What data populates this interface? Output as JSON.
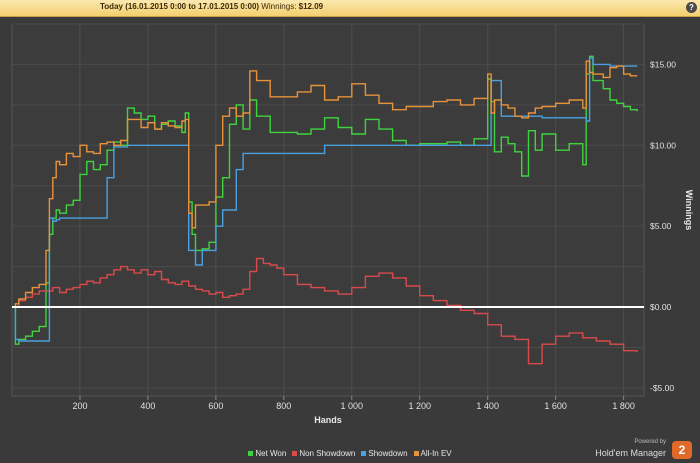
{
  "header": {
    "range_label": "Today (16.01.2015 0:00 to 17.01.2015 0:00)",
    "winnings_label": "Winnings:",
    "winnings_value": "$12.09",
    "help_label": "?"
  },
  "brand": {
    "powered_by": "Powered by",
    "name": "Hold'em Manager",
    "badge": "2"
  },
  "chart_data": {
    "type": "line",
    "xlabel": "Hands",
    "ylabel": "Winnings",
    "xlim": [
      0,
      1860
    ],
    "ylim": [
      -5.5,
      17.5
    ],
    "xticks": [
      200,
      400,
      600,
      800,
      1000,
      1200,
      1400,
      1600,
      1800
    ],
    "xtick_labels": [
      "200",
      "400",
      "600",
      "800",
      "1 000",
      "1 200",
      "1 400",
      "1 600",
      "1 800"
    ],
    "yticks": [
      -5,
      0,
      5,
      10,
      15
    ],
    "ytick_labels": [
      "-$5.00",
      "$0.00",
      "$5.00",
      "$10.00",
      "$15.00"
    ],
    "zero_line": 0,
    "grid": true,
    "legend_position": "bottom-center",
    "series": [
      {
        "name": "Net Won",
        "color": "#3fd43f",
        "x": [
          0,
          10,
          20,
          40,
          60,
          80,
          100,
          110,
          120,
          130,
          140,
          160,
          180,
          200,
          220,
          240,
          260,
          280,
          300,
          320,
          340,
          360,
          380,
          400,
          420,
          440,
          460,
          480,
          500,
          510,
          520,
          530,
          540,
          560,
          580,
          600,
          620,
          640,
          660,
          680,
          700,
          720,
          760,
          800,
          840,
          880,
          920,
          960,
          1000,
          1040,
          1080,
          1120,
          1160,
          1200,
          1240,
          1280,
          1320,
          1360,
          1400,
          1410,
          1420,
          1440,
          1460,
          1480,
          1500,
          1520,
          1540,
          1560,
          1600,
          1640,
          1680,
          1690,
          1700,
          1710,
          1740,
          1760,
          1780,
          1800,
          1820,
          1840
        ],
        "y": [
          0,
          -2.3,
          -2.0,
          -1.8,
          -1.5,
          -1.2,
          1.5,
          4.5,
          5.5,
          6.0,
          5.8,
          6.3,
          6.6,
          8.2,
          9.0,
          8.5,
          8.8,
          9.7,
          10.2,
          10.0,
          12.3,
          12.0,
          11.6,
          11.8,
          11.0,
          11.3,
          11.5,
          11.2,
          10.8,
          12.0,
          6.5,
          4.5,
          3.5,
          3.6,
          4.0,
          6.8,
          8.0,
          11.3,
          12.5,
          11.0,
          12.8,
          11.8,
          10.8,
          10.8,
          10.7,
          11.0,
          11.7,
          11.1,
          10.7,
          11.6,
          11.0,
          10.3,
          10.0,
          10.1,
          10.1,
          10.2,
          10.0,
          10.4,
          14.1,
          12.7,
          9.6,
          10.5,
          10.1,
          9.6,
          8.1,
          10.9,
          9.7,
          10.7,
          9.7,
          10.1,
          8.8,
          14.4,
          15.5,
          14.0,
          13.5,
          12.8,
          12.6,
          12.4,
          12.2,
          12.1
        ]
      },
      {
        "name": "Non Showdown",
        "color": "#d94a4a",
        "x": [
          0,
          20,
          40,
          60,
          80,
          100,
          120,
          140,
          160,
          180,
          200,
          220,
          240,
          260,
          280,
          300,
          320,
          340,
          360,
          380,
          400,
          420,
          440,
          460,
          480,
          500,
          520,
          540,
          560,
          580,
          600,
          620,
          640,
          660,
          680,
          700,
          720,
          740,
          760,
          780,
          800,
          840,
          880,
          920,
          960,
          1000,
          1040,
          1080,
          1120,
          1160,
          1200,
          1240,
          1280,
          1320,
          1360,
          1400,
          1440,
          1480,
          1520,
          1560,
          1600,
          1640,
          1680,
          1720,
          1760,
          1800,
          1840
        ],
        "y": [
          0,
          0.4,
          0.6,
          0.8,
          1.0,
          1.0,
          1.2,
          0.9,
          1.1,
          1.2,
          1.4,
          1.6,
          1.5,
          1.8,
          2.0,
          2.3,
          2.5,
          2.3,
          2.1,
          2.3,
          2.0,
          2.2,
          1.7,
          1.5,
          1.4,
          1.6,
          1.3,
          1.1,
          1.0,
          0.8,
          0.9,
          0.6,
          0.7,
          0.8,
          1.1,
          2.2,
          3.0,
          2.7,
          2.6,
          2.4,
          2.0,
          1.4,
          1.2,
          1.0,
          0.8,
          1.2,
          1.9,
          2.1,
          1.8,
          1.3,
          0.7,
          0.4,
          0.1,
          -0.2,
          -0.4,
          -1.1,
          -1.8,
          -2.0,
          -3.5,
          -2.3,
          -1.8,
          -1.6,
          -1.9,
          -2.1,
          -2.3,
          -2.7,
          -2.8
        ]
      },
      {
        "name": "Showdown",
        "color": "#4aa0e0",
        "x": [
          0,
          10,
          20,
          40,
          60,
          80,
          110,
          120,
          130,
          140,
          160,
          180,
          200,
          220,
          240,
          260,
          280,
          300,
          330,
          340,
          360,
          380,
          400,
          420,
          440,
          460,
          480,
          500,
          510,
          520,
          540,
          560,
          580,
          600,
          620,
          640,
          660,
          680,
          700,
          720,
          760,
          800,
          840,
          880,
          920,
          960,
          1000,
          1040,
          1080,
          1120,
          1160,
          1200,
          1240,
          1280,
          1320,
          1360,
          1400,
          1410,
          1440,
          1480,
          1520,
          1560,
          1600,
          1640,
          1680,
          1690,
          1700,
          1710,
          1740,
          1760,
          1780,
          1800,
          1820,
          1840
        ],
        "y": [
          0,
          -2.0,
          -2.1,
          -2.1,
          -2.1,
          -2.1,
          5.5,
          5.3,
          5.4,
          5.5,
          5.5,
          5.5,
          5.5,
          5.5,
          5.5,
          5.5,
          8.0,
          9.9,
          9.9,
          10.0,
          10.0,
          10.0,
          10.0,
          10.0,
          10.0,
          10.0,
          10.0,
          10.0,
          10.0,
          3.5,
          2.6,
          3.5,
          3.5,
          5.0,
          6.0,
          6.0,
          8.5,
          9.5,
          9.5,
          9.5,
          9.5,
          9.5,
          9.5,
          9.5,
          10.0,
          10.0,
          10.0,
          10.0,
          10.0,
          10.0,
          10.0,
          10.0,
          10.0,
          10.0,
          10.0,
          10.0,
          10.0,
          14.0,
          11.8,
          11.8,
          11.8,
          11.7,
          11.7,
          11.7,
          11.7,
          11.5,
          15.4,
          15.0,
          15.0,
          14.9,
          14.9,
          14.9,
          14.9,
          14.9
        ]
      },
      {
        "name": "All-In EV",
        "color": "#e8923a",
        "x": [
          0,
          10,
          20,
          40,
          60,
          80,
          100,
          110,
          120,
          130,
          140,
          160,
          180,
          200,
          220,
          240,
          260,
          280,
          300,
          320,
          340,
          360,
          380,
          400,
          420,
          440,
          460,
          480,
          500,
          510,
          520,
          530,
          540,
          560,
          580,
          600,
          620,
          640,
          660,
          680,
          700,
          720,
          760,
          800,
          840,
          880,
          920,
          960,
          1000,
          1040,
          1080,
          1120,
          1160,
          1200,
          1240,
          1280,
          1320,
          1360,
          1400,
          1410,
          1420,
          1440,
          1460,
          1480,
          1500,
          1520,
          1540,
          1560,
          1600,
          1640,
          1680,
          1690,
          1700,
          1710,
          1740,
          1760,
          1780,
          1800,
          1820,
          1840
        ],
        "y": [
          0,
          0.2,
          0.5,
          0.9,
          1.2,
          1.4,
          3.5,
          6.7,
          8.0,
          9.0,
          8.8,
          9.5,
          9.3,
          10.0,
          9.6,
          9.5,
          10.1,
          10.2,
          10.0,
          10.3,
          11.6,
          11.6,
          11.1,
          11.4,
          11.0,
          11.4,
          11.2,
          11.1,
          11.5,
          11.6,
          5.8,
          4.9,
          6.3,
          6.3,
          6.5,
          10.0,
          11.8,
          12.3,
          11.8,
          12.0,
          14.6,
          14.0,
          13.0,
          13.0,
          13.3,
          13.7,
          12.8,
          13.0,
          13.8,
          13.1,
          12.6,
          12.2,
          12.4,
          12.4,
          12.7,
          12.8,
          12.5,
          12.9,
          14.4,
          12.0,
          12.8,
          12.5,
          12.3,
          11.8,
          11.7,
          12.0,
          12.3,
          12.4,
          12.6,
          12.8,
          12.3,
          15.2,
          14.5,
          14.4,
          14.2,
          14.8,
          14.9,
          14.4,
          14.3,
          14.3
        ]
      }
    ]
  }
}
